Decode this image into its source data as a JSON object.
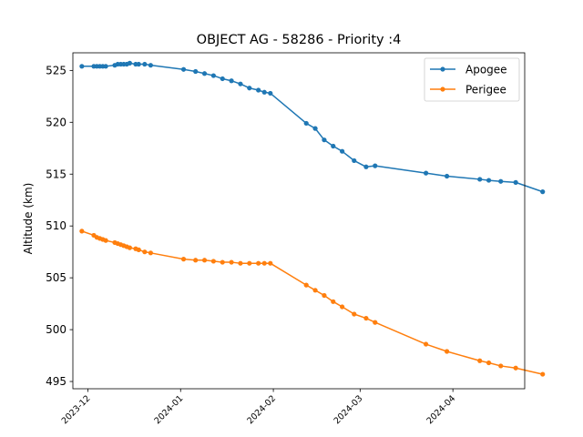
{
  "chart_data": {
    "type": "line",
    "title": "OBJECT AG - 58286 - Priority :4",
    "xlabel": "",
    "ylabel": "Altitude (km)",
    "x_type": "date",
    "xlim": [
      "2023-11-26",
      "2024-04-25"
    ],
    "ylim": [
      494.3,
      526.7
    ],
    "yticks": [
      495,
      500,
      505,
      510,
      515,
      520,
      525
    ],
    "xticks": [
      "2023-12",
      "2024-01",
      "2024-02",
      "2024-03",
      "2024-04"
    ],
    "grid": false,
    "legend_position": "top-right",
    "series": [
      {
        "name": "Apogee",
        "color": "#1f77b4",
        "points": [
          [
            "2023-11-29",
            525.4
          ],
          [
            "2023-12-03",
            525.4
          ],
          [
            "2023-12-04",
            525.4
          ],
          [
            "2023-12-05",
            525.4
          ],
          [
            "2023-12-06",
            525.4
          ],
          [
            "2023-12-07",
            525.4
          ],
          [
            "2023-12-10",
            525.5
          ],
          [
            "2023-12-11",
            525.6
          ],
          [
            "2023-12-12",
            525.6
          ],
          [
            "2023-12-13",
            525.6
          ],
          [
            "2023-12-14",
            525.6
          ],
          [
            "2023-12-15",
            525.7
          ],
          [
            "2023-12-17",
            525.6
          ],
          [
            "2023-12-18",
            525.6
          ],
          [
            "2023-12-20",
            525.6
          ],
          [
            "2023-12-22",
            525.5
          ],
          [
            "2024-01-02",
            525.1
          ],
          [
            "2024-01-06",
            524.9
          ],
          [
            "2024-01-09",
            524.7
          ],
          [
            "2024-01-12",
            524.5
          ],
          [
            "2024-01-15",
            524.2
          ],
          [
            "2024-01-18",
            524.0
          ],
          [
            "2024-01-21",
            523.7
          ],
          [
            "2024-01-24",
            523.3
          ],
          [
            "2024-01-27",
            523.1
          ],
          [
            "2024-01-29",
            522.9
          ],
          [
            "2024-01-31",
            522.8
          ],
          [
            "2024-02-12",
            519.9
          ],
          [
            "2024-02-15",
            519.4
          ],
          [
            "2024-02-18",
            518.3
          ],
          [
            "2024-02-21",
            517.7
          ],
          [
            "2024-02-24",
            517.2
          ],
          [
            "2024-02-28",
            516.3
          ],
          [
            "2024-03-03",
            515.7
          ],
          [
            "2024-03-06",
            515.8
          ],
          [
            "2024-03-23",
            515.1
          ],
          [
            "2024-03-30",
            514.8
          ],
          [
            "2024-04-10",
            514.5
          ],
          [
            "2024-04-13",
            514.4
          ],
          [
            "2024-04-17",
            514.3
          ],
          [
            "2024-04-22",
            514.2
          ],
          [
            "2024-05-01",
            513.3
          ]
        ]
      },
      {
        "name": "Perigee",
        "color": "#ff7f0e",
        "points": [
          [
            "2023-11-29",
            509.5
          ],
          [
            "2023-12-03",
            509.1
          ],
          [
            "2023-12-04",
            508.9
          ],
          [
            "2023-12-05",
            508.8
          ],
          [
            "2023-12-06",
            508.7
          ],
          [
            "2023-12-07",
            508.6
          ],
          [
            "2023-12-10",
            508.4
          ],
          [
            "2023-12-11",
            508.3
          ],
          [
            "2023-12-12",
            508.2
          ],
          [
            "2023-12-13",
            508.1
          ],
          [
            "2023-12-14",
            508.0
          ],
          [
            "2023-12-15",
            507.9
          ],
          [
            "2023-12-17",
            507.8
          ],
          [
            "2023-12-18",
            507.7
          ],
          [
            "2023-12-20",
            507.5
          ],
          [
            "2023-12-22",
            507.4
          ],
          [
            "2024-01-02",
            506.8
          ],
          [
            "2024-01-06",
            506.7
          ],
          [
            "2024-01-09",
            506.7
          ],
          [
            "2024-01-12",
            506.6
          ],
          [
            "2024-01-15",
            506.5
          ],
          [
            "2024-01-18",
            506.5
          ],
          [
            "2024-01-21",
            506.4
          ],
          [
            "2024-01-24",
            506.4
          ],
          [
            "2024-01-27",
            506.4
          ],
          [
            "2024-01-29",
            506.4
          ],
          [
            "2024-01-31",
            506.4
          ],
          [
            "2024-02-12",
            504.3
          ],
          [
            "2024-02-15",
            503.8
          ],
          [
            "2024-02-18",
            503.3
          ],
          [
            "2024-02-21",
            502.7
          ],
          [
            "2024-02-24",
            502.2
          ],
          [
            "2024-02-28",
            501.5
          ],
          [
            "2024-03-03",
            501.1
          ],
          [
            "2024-03-06",
            500.7
          ],
          [
            "2024-03-23",
            498.6
          ],
          [
            "2024-03-30",
            497.9
          ],
          [
            "2024-04-10",
            497.0
          ],
          [
            "2024-04-13",
            496.8
          ],
          [
            "2024-04-17",
            496.5
          ],
          [
            "2024-04-22",
            496.3
          ],
          [
            "2024-05-01",
            495.7
          ]
        ]
      }
    ]
  }
}
